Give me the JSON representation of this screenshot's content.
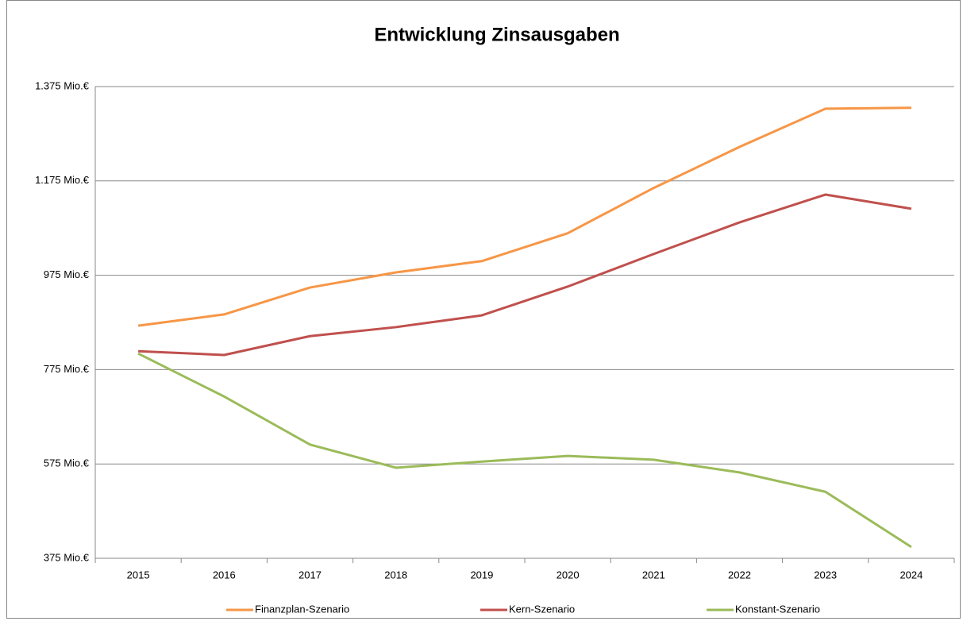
{
  "chart_data": {
    "type": "line",
    "title": "Entwicklung Zinsausgaben",
    "categories": [
      "2015",
      "2016",
      "2017",
      "2018",
      "2019",
      "2020",
      "2021",
      "2022",
      "2023",
      "2024"
    ],
    "series": [
      {
        "name": "Finanzplan-Szenario",
        "color": "#f79646",
        "values": [
          868,
          892,
          949,
          981,
          1005,
          1064,
          1160,
          1247,
          1328,
          1330
        ]
      },
      {
        "name": "Kern-Szenario",
        "color": "#c0504d",
        "values": [
          814,
          806,
          846,
          865,
          890,
          951,
          1020,
          1087,
          1146,
          1116
        ]
      },
      {
        "name": "Konstant-Szenario",
        "color": "#9bbb59",
        "values": [
          809,
          718,
          616,
          567,
          580,
          592,
          584,
          557,
          516,
          399
        ]
      }
    ],
    "ylim": [
      375,
      1375
    ],
    "yticks": [
      {
        "value": 375,
        "label": "375 Mio.€"
      },
      {
        "value": 575,
        "label": "575 Mio.€"
      },
      {
        "value": 775,
        "label": "775 Mio.€"
      },
      {
        "value": 975,
        "label": "975 Mio.€"
      },
      {
        "value": 1175,
        "label": "1.175 Mio.€"
      },
      {
        "value": 1375,
        "label": "1.375 Mio.€"
      }
    ],
    "grid": true,
    "legend": "bottom"
  }
}
